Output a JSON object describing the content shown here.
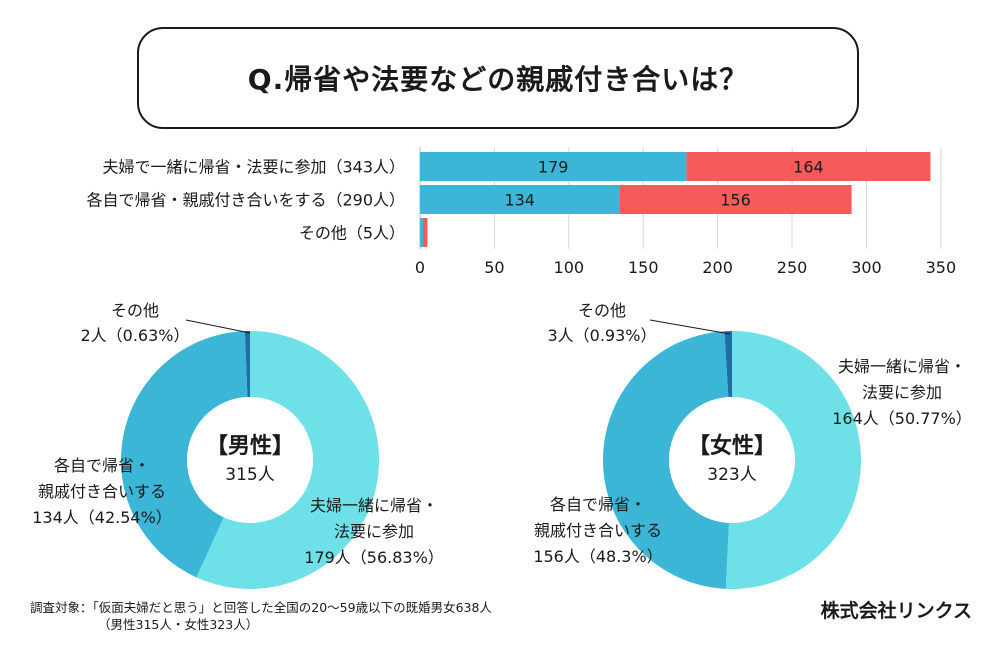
{
  "title": "Q.帰省や法要などの親戚付き合いは？",
  "colors": {
    "male": "#3cb6d6",
    "female": "#f65a5a",
    "donut_light": "#6de0e8",
    "donut_mid": "#3cb6d6",
    "donut_dark": "#1f6fa5"
  },
  "chart_data": [
    {
      "type": "bar",
      "orientation": "horizontal",
      "stacked": true,
      "categories": [
        "夫婦で一緒に帰省・法要に参加（343人）",
        "各自で帰省・親戚付き合いをする（290人）",
        "その他（5人）"
      ],
      "series": [
        {
          "name": "男性",
          "values": [
            179,
            134,
            2
          ],
          "labels": [
            "179",
            "134",
            ""
          ]
        },
        {
          "name": "女性",
          "values": [
            164,
            156,
            3
          ],
          "labels": [
            "164",
            "156",
            ""
          ]
        }
      ],
      "xticks": [
        "0",
        "50",
        "100",
        "150",
        "200",
        "250",
        "300",
        "350"
      ],
      "xlim": [
        0,
        350
      ],
      "grid": true
    },
    {
      "type": "pie",
      "donut": true,
      "center_title": "【男性】",
      "center_total": "315人",
      "slices": [
        {
          "name": "夫婦一緒に帰省・法要に参加",
          "value": 179,
          "lines": [
            "夫婦一緒に帰省・",
            "法要に参加",
            "179人（56.83%）"
          ]
        },
        {
          "name": "各自で帰省・親戚付き合いする",
          "value": 134,
          "lines": [
            "各自で帰省・",
            "親戚付き合いする",
            "134人（42.54%）"
          ]
        },
        {
          "name": "その他",
          "value": 2,
          "lines": [
            "その他",
            "2人（0.63%）"
          ]
        }
      ]
    },
    {
      "type": "pie",
      "donut": true,
      "center_title": "【女性】",
      "center_total": "323人",
      "slices": [
        {
          "name": "夫婦一緒に帰省・法要に参加",
          "value": 164,
          "lines": [
            "夫婦一緒に帰省・",
            "法要に参加",
            "164人（50.77%）"
          ]
        },
        {
          "name": "各自で帰省・親戚付き合いする",
          "value": 156,
          "lines": [
            "各自で帰省・",
            "親戚付き合いする",
            "156人（48.3%）"
          ]
        },
        {
          "name": "その他",
          "value": 3,
          "lines": [
            "その他",
            "3人（0.93%）"
          ]
        }
      ]
    }
  ],
  "footnote": {
    "line1": "調査対象：「仮面夫婦だと思う」と回答した全国の20〜59歳以下の既婚男女638人",
    "line2": "（男性315人・女性323人）"
  },
  "brand": "株式会社リンクス"
}
